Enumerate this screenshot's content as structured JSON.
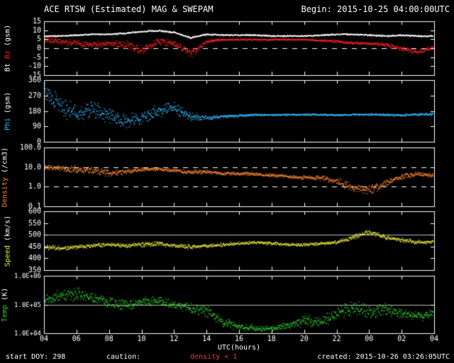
{
  "header": {
    "title": "ACE RTSW (Estimated) MAG & SWEPAM",
    "begin_label": "Begin: 2015-10-25 04:00:00UTC"
  },
  "footer": {
    "start_doy": "start DOY: 298",
    "caution_label": "caution:",
    "caution_value": "density < 1",
    "caution_value_color": "#ff3333",
    "created": "created: 2015-10-26 03:26:05UTC"
  },
  "colors": {
    "background": "#000000",
    "frame": "#ffffff",
    "bt": "#ffffff",
    "bz": "#ff2222",
    "phi": "#33bbff",
    "density": "#ff8830",
    "speed": "#e8e840",
    "temp": "#33cc33"
  },
  "chart_data": {
    "type": "scatter",
    "title": "ACE RTSW (Estimated) MAG & SWEPAM",
    "begin": "2015-10-25 04:00:00UTC",
    "x_hours": [
      4,
      5,
      6,
      7,
      8,
      9,
      10,
      11,
      12,
      13,
      14,
      15,
      16,
      17,
      18,
      19,
      20,
      21,
      22,
      23,
      24,
      25,
      26,
      27,
      28
    ],
    "xaxis": {
      "label": "UTC(hours)",
      "range_hours": [
        4,
        28
      ],
      "ticks": [
        {
          "h": 4,
          "label": "04"
        },
        {
          "h": 6,
          "label": "06"
        },
        {
          "h": 8,
          "label": "08"
        },
        {
          "h": 10,
          "label": "10"
        },
        {
          "h": 12,
          "label": "12"
        },
        {
          "h": 14,
          "label": "14"
        },
        {
          "h": 16,
          "label": "16"
        },
        {
          "h": 18,
          "label": "18"
        },
        {
          "h": 20,
          "label": "20"
        },
        {
          "h": 22,
          "label": "22"
        },
        {
          "h": 24,
          "label": "00"
        },
        {
          "h": 26,
          "label": "02"
        },
        {
          "h": 28,
          "label": "04"
        }
      ]
    },
    "panels": [
      {
        "name": "mag",
        "ylabel_parts": [
          {
            "text": "Bt",
            "color": "#ffffff"
          },
          {
            "text": "Bz",
            "color": "#ff2222"
          },
          {
            "text": "(gsm)",
            "color": "#ffffff"
          }
        ],
        "yscale": "linear",
        "ylim": [
          -15,
          15
        ],
        "ytick_values": [
          15,
          10,
          5,
          0,
          -5,
          -10,
          -15
        ],
        "ytick_labels": [
          "15",
          "10",
          "5",
          "0",
          "-5",
          "-10",
          "-15"
        ],
        "hlines": [
          {
            "value": 0,
            "style": "dashed",
            "color": "#ffffff"
          }
        ],
        "series": [
          {
            "name": "Bt",
            "color": "#ffffff",
            "values": [
              7,
              7,
              7.5,
              8,
              8,
              8.5,
              9.5,
              10,
              9,
              6,
              8,
              7.5,
              7.5,
              7.5,
              7,
              7,
              7,
              7.5,
              8,
              8,
              7.5,
              7,
              7.5,
              7,
              7
            ],
            "spread": 0.5
          },
          {
            "name": "Bz",
            "color": "#ff2222",
            "values": [
              5,
              4,
              3,
              2,
              3,
              2,
              -1,
              4,
              3,
              -3,
              4,
              5,
              5,
              5,
              5,
              5,
              5,
              4.5,
              4,
              3,
              3,
              2,
              0,
              -2,
              1
            ],
            "spread": [
              2,
              2,
              2,
              2,
              2,
              3,
              3,
              2,
              2,
              2.5,
              1,
              0.6,
              0.5,
              0.5,
              0.5,
              0.5,
              0.5,
              0.6,
              0.8,
              1,
              1,
              1.2,
              1.5,
              1.5,
              1.2
            ]
          }
        ]
      },
      {
        "name": "phi",
        "ylabel_parts": [
          {
            "text": "Phi",
            "color": "#33bbff"
          },
          {
            "text": "(gsm)",
            "color": "#ffffff"
          }
        ],
        "yscale": "linear",
        "ylim": [
          0,
          360
        ],
        "ytick_values": [
          360,
          270,
          180,
          90,
          0
        ],
        "ytick_labels": [
          "360",
          "270",
          "180",
          "90",
          "0"
        ],
        "hlines": [],
        "series": [
          {
            "name": "Phi",
            "color": "#33bbff",
            "values": [
              300,
              220,
              160,
              200,
              150,
              120,
              140,
              180,
              200,
              150,
              140,
              150,
              155,
              160,
              160,
              160,
              162,
              160,
              158,
              160,
              162,
              160,
              158,
              162,
              165
            ],
            "spread": [
              60,
              70,
              60,
              55,
              60,
              45,
              40,
              50,
              40,
              30,
              15,
              10,
              8,
              8,
              6,
              6,
              6,
              6,
              6,
              6,
              6,
              8,
              8,
              8,
              10
            ]
          }
        ]
      },
      {
        "name": "density",
        "ylabel_parts": [
          {
            "text": "Density",
            "color": "#ff8830"
          },
          {
            "text": "(/cm3)",
            "color": "#ffffff"
          }
        ],
        "yscale": "log",
        "ylim": [
          0.1,
          100
        ],
        "ytick_values": [
          100,
          10,
          1,
          0.1
        ],
        "ytick_labels": [
          "100.0",
          "10.0",
          "1.0",
          "0.1"
        ],
        "hlines": [
          {
            "value": 10,
            "style": "dashed",
            "color": "#ffffff"
          },
          {
            "value": 1,
            "style": "dashed",
            "color": "#ffffff"
          }
        ],
        "series": [
          {
            "name": "Density",
            "color": "#ff8830",
            "values": [
              10,
              9,
              8,
              7,
              5,
              6,
              8,
              8,
              7,
              6,
              6,
              5,
              5,
              4.5,
              4,
              3.5,
              3,
              3,
              2,
              0.9,
              0.7,
              1.5,
              3.5,
              4.5,
              4
            ],
            "spread": [
              0.15,
              0.15,
              0.2,
              0.2,
              0.2,
              0.15,
              0.1,
              0.1,
              0.1,
              0.15,
              0.1,
              0.1,
              0.1,
              0.1,
              0.1,
              0.1,
              0.12,
              0.15,
              0.2,
              0.25,
              0.25,
              0.2,
              0.15,
              0.12,
              0.12
            ]
          }
        ]
      },
      {
        "name": "speed",
        "ylabel_parts": [
          {
            "text": "Speed",
            "color": "#e8e840"
          },
          {
            "text": "(km/s)",
            "color": "#ffffff"
          }
        ],
        "yscale": "linear",
        "ylim": [
          350,
          600
        ],
        "ytick_values": [
          600,
          550,
          500,
          450,
          400,
          350
        ],
        "ytick_labels": [
          "600",
          "550",
          "500",
          "450",
          "400",
          "350"
        ],
        "hlines": [
          {
            "value": 500,
            "style": "solid",
            "color": "#bbbbbb"
          }
        ],
        "series": [
          {
            "name": "Speed",
            "color": "#e8e840",
            "values": [
              450,
              445,
              450,
              455,
              460,
              455,
              460,
              465,
              455,
              450,
              455,
              460,
              465,
              470,
              465,
              460,
              460,
              465,
              470,
              490,
              515,
              490,
              480,
              470,
              470
            ],
            "spread": [
              12,
              12,
              10,
              10,
              10,
              10,
              12,
              10,
              10,
              10,
              8,
              8,
              8,
              8,
              8,
              8,
              8,
              8,
              10,
              12,
              15,
              12,
              10,
              10,
              10
            ]
          }
        ]
      },
      {
        "name": "temp",
        "ylabel_parts": [
          {
            "text": "Temp",
            "color": "#33cc33"
          },
          {
            "text": "(K)",
            "color": "#ffffff"
          }
        ],
        "yscale": "log",
        "ylim": [
          10000,
          1000000
        ],
        "ytick_values": [
          1000000,
          100000,
          10000
        ],
        "ytick_labels": [
          "1.0E+06",
          "1.0E+05",
          "1.0E+04"
        ],
        "ytick_font": 9,
        "hlines": [
          {
            "value": 100000,
            "style": "solid",
            "color": "#bbbbbb"
          }
        ],
        "series": [
          {
            "name": "Temp",
            "color": "#33cc33",
            "values": [
              150000,
              200000,
              250000,
              180000,
              120000,
              100000,
              120000,
              150000,
              100000,
              80000,
              60000,
              25000,
              18000,
              15000,
              15000,
              20000,
              30000,
              25000,
              50000,
              80000,
              60000,
              70000,
              50000,
              40000,
              50000
            ],
            "spread": [
              0.2,
              0.25,
              0.25,
              0.2,
              0.2,
              0.2,
              0.2,
              0.2,
              0.2,
              0.2,
              0.25,
              0.2,
              0.15,
              0.12,
              0.12,
              0.15,
              0.25,
              0.25,
              0.3,
              0.3,
              0.25,
              0.25,
              0.2,
              0.2,
              0.2
            ]
          }
        ]
      }
    ]
  }
}
